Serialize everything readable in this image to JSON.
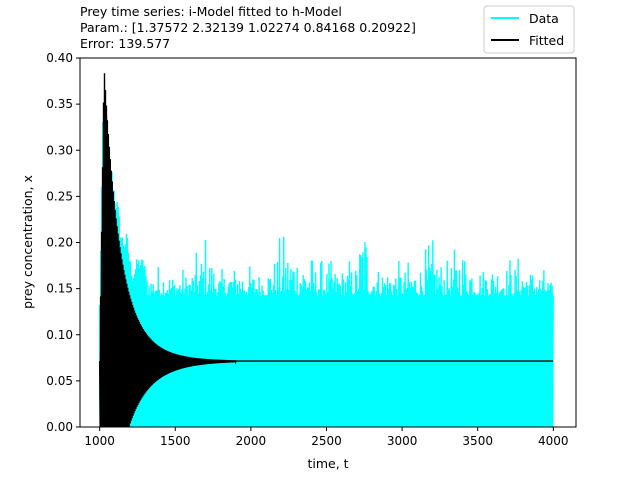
{
  "header": {
    "title_line1": "Prey time series: i-Model fitted to h-Model",
    "title_line2": "Param.: [1.37572 2.32139 1.02274 0.84168 0.20922]",
    "title_line3": "Error: 139.577"
  },
  "chart_data": {
    "type": "line",
    "xlabel": "time, t",
    "ylabel": "prey concentration, x",
    "xlim": [
      870,
      4150
    ],
    "ylim": [
      0,
      0.4
    ],
    "xticks": [
      1000,
      1500,
      2000,
      2500,
      3000,
      3500,
      4000
    ],
    "xtick_labels": [
      "1000",
      "1500",
      "2000",
      "2500",
      "3000",
      "3500",
      "4000"
    ],
    "yticks": [
      0,
      0.05,
      0.1,
      0.15,
      0.2,
      0.25,
      0.3,
      0.35,
      0.4
    ],
    "ytick_labels": [
      "0.00",
      "0.05",
      "0.10",
      "0.15",
      "0.20",
      "0.25",
      "0.30",
      "0.35",
      "0.40"
    ],
    "legend_placement": "top-right",
    "series": [
      {
        "name": "Data",
        "color": "#00ffff",
        "t_range": [
          1000,
          4000
        ],
        "trough": 0.0,
        "peaks": [
          [
            1000,
            0.136
          ],
          [
            1020,
            0.33
          ],
          [
            1035,
            0.365
          ],
          [
            1050,
            0.335
          ],
          [
            1065,
            0.3
          ],
          [
            1080,
            0.283
          ],
          [
            1100,
            0.26
          ],
          [
            1120,
            0.245
          ],
          [
            1140,
            0.215
          ],
          [
            1160,
            0.205
          ],
          [
            1180,
            0.212
          ],
          [
            1200,
            0.185
          ],
          [
            1220,
            0.168
          ],
          [
            1250,
            0.185
          ],
          [
            1290,
            0.183
          ],
          [
            1350,
            0.172
          ],
          [
            1420,
            0.18
          ],
          [
            1500,
            0.17
          ],
          [
            1600,
            0.175
          ],
          [
            1700,
            0.21
          ],
          [
            1800,
            0.17
          ],
          [
            1900,
            0.185
          ],
          [
            2000,
            0.175
          ],
          [
            2100,
            0.175
          ],
          [
            2200,
            0.21
          ],
          [
            2300,
            0.205
          ],
          [
            2400,
            0.185
          ],
          [
            2500,
            0.18
          ],
          [
            2600,
            0.18
          ],
          [
            2700,
            0.185
          ],
          [
            2745,
            0.26
          ],
          [
            2800,
            0.185
          ],
          [
            2900,
            0.18
          ],
          [
            3000,
            0.18
          ],
          [
            3100,
            0.18
          ],
          [
            3200,
            0.205
          ],
          [
            3300,
            0.18
          ],
          [
            3400,
            0.21
          ],
          [
            3500,
            0.18
          ],
          [
            3600,
            0.185
          ],
          [
            3700,
            0.185
          ],
          [
            3800,
            0.185
          ],
          [
            3900,
            0.175
          ],
          [
            3960,
            0.17
          ],
          [
            4000,
            0.15
          ]
        ],
        "noise_base": 0.142
      },
      {
        "name": "Fitted",
        "color": "#000000",
        "t_range": [
          1000,
          4000
        ],
        "equilibrium": 0.0715,
        "peak_t": 1030,
        "peak_value": 0.4
      }
    ]
  }
}
